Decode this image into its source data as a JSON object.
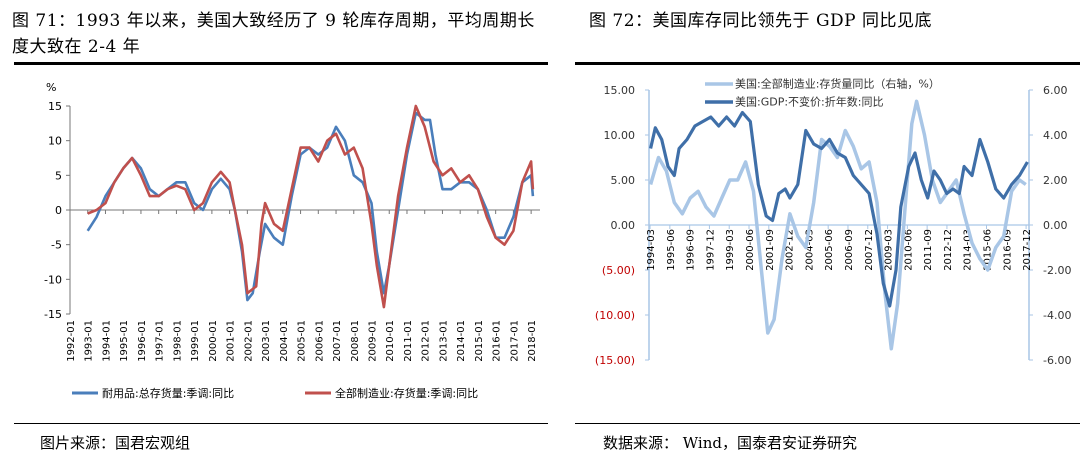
{
  "left": {
    "title": "图 71：1993 年以来，美国大致经历了 9 轮库存周期，平均周期长度大致在 2-4 年",
    "source": "图片来源：国君宏观组",
    "chart_data": {
      "type": "line",
      "ylabel": "%",
      "ylim": [
        -15,
        15
      ],
      "yticks": [
        "15",
        "10",
        "5",
        "0",
        "-5",
        "-10",
        "-15"
      ],
      "yticks_values": [
        15,
        10,
        5,
        0,
        -5,
        -10,
        -15
      ],
      "xlim": [
        1992,
        2018.5
      ],
      "x_ticks": [
        "1992-01",
        "1993-01",
        "1994-01",
        "1995-01",
        "1996-01",
        "1997-01",
        "1998-01",
        "1999-01",
        "2000-01",
        "2001-01",
        "2002-01",
        "2003-01",
        "2004-01",
        "2005-01",
        "2006-01",
        "2007-01",
        "2008-01",
        "2009-01",
        "2010-01",
        "2011-01",
        "2012-01",
        "2013-01",
        "2014-01",
        "2015-01",
        "2016-01",
        "2017-01",
        "2018-01"
      ],
      "legend_position": "bottom",
      "series": [
        {
          "name": "耐用品:总存货量:季调:同比",
          "color": "#4a7ebb",
          "points": [
            [
              1993.0,
              -3
            ],
            [
              1993.5,
              -1
            ],
            [
              1994.0,
              2
            ],
            [
              1994.5,
              4
            ],
            [
              1995.0,
              6
            ],
            [
              1995.5,
              7.5
            ],
            [
              1996.0,
              6
            ],
            [
              1996.5,
              3
            ],
            [
              1997.0,
              2
            ],
            [
              1997.5,
              3
            ],
            [
              1998.0,
              4
            ],
            [
              1998.5,
              4
            ],
            [
              1999.0,
              1
            ],
            [
              1999.5,
              0
            ],
            [
              2000.0,
              3
            ],
            [
              2000.5,
              4.5
            ],
            [
              2001.0,
              3
            ],
            [
              2001.3,
              0
            ],
            [
              2001.7,
              -6
            ],
            [
              2002.0,
              -13
            ],
            [
              2002.3,
              -12
            ],
            [
              2002.7,
              -6
            ],
            [
              2003.0,
              -2
            ],
            [
              2003.5,
              -4
            ],
            [
              2004.0,
              -5
            ],
            [
              2004.5,
              2
            ],
            [
              2005.0,
              8
            ],
            [
              2005.5,
              9
            ],
            [
              2006.0,
              8
            ],
            [
              2006.5,
              9
            ],
            [
              2007.0,
              12
            ],
            [
              2007.5,
              10
            ],
            [
              2008.0,
              5
            ],
            [
              2008.5,
              4
            ],
            [
              2009.0,
              1
            ],
            [
              2009.3,
              -6
            ],
            [
              2009.7,
              -12
            ],
            [
              2010.0,
              -8
            ],
            [
              2010.5,
              0
            ],
            [
              2011.0,
              8
            ],
            [
              2011.5,
              14
            ],
            [
              2012.0,
              13
            ],
            [
              2012.3,
              13
            ],
            [
              2012.6,
              8
            ],
            [
              2013.0,
              3
            ],
            [
              2013.5,
              3
            ],
            [
              2014.0,
              4
            ],
            [
              2014.5,
              4
            ],
            [
              2015.0,
              3
            ],
            [
              2015.5,
              0
            ],
            [
              2016.0,
              -4
            ],
            [
              2016.5,
              -4
            ],
            [
              2017.0,
              -1
            ],
            [
              2017.5,
              4
            ],
            [
              2018.0,
              5
            ],
            [
              2018.1,
              2
            ]
          ]
        },
        {
          "name": "全部制造业:存货量:季调:同比",
          "color": "#c0504d",
          "points": [
            [
              1993.0,
              -0.5
            ],
            [
              1993.5,
              0
            ],
            [
              1994.0,
              1
            ],
            [
              1994.5,
              4
            ],
            [
              1995.0,
              6
            ],
            [
              1995.5,
              7.5
            ],
            [
              1996.0,
              5
            ],
            [
              1996.5,
              2
            ],
            [
              1997.0,
              2
            ],
            [
              1997.5,
              3
            ],
            [
              1998.0,
              3.5
            ],
            [
              1998.5,
              3
            ],
            [
              1999.0,
              0
            ],
            [
              1999.5,
              1
            ],
            [
              2000.0,
              4
            ],
            [
              2000.5,
              5.5
            ],
            [
              2001.0,
              4
            ],
            [
              2001.3,
              0
            ],
            [
              2001.7,
              -5
            ],
            [
              2002.0,
              -12
            ],
            [
              2002.5,
              -11
            ],
            [
              2002.8,
              -2
            ],
            [
              2003.0,
              1
            ],
            [
              2003.5,
              -2
            ],
            [
              2004.0,
              -3
            ],
            [
              2004.5,
              3
            ],
            [
              2005.0,
              9
            ],
            [
              2005.5,
              9
            ],
            [
              2006.0,
              7
            ],
            [
              2006.5,
              10
            ],
            [
              2007.0,
              11
            ],
            [
              2007.5,
              8
            ],
            [
              2008.0,
              9
            ],
            [
              2008.5,
              6
            ],
            [
              2009.0,
              -2
            ],
            [
              2009.3,
              -8
            ],
            [
              2009.7,
              -14
            ],
            [
              2010.0,
              -8
            ],
            [
              2010.5,
              2
            ],
            [
              2011.0,
              9
            ],
            [
              2011.5,
              15
            ],
            [
              2012.0,
              12
            ],
            [
              2012.5,
              7
            ],
            [
              2013.0,
              5
            ],
            [
              2013.5,
              6
            ],
            [
              2014.0,
              4
            ],
            [
              2014.5,
              5
            ],
            [
              2015.0,
              3
            ],
            [
              2015.5,
              -1
            ],
            [
              2016.0,
              -4
            ],
            [
              2016.5,
              -5
            ],
            [
              2017.0,
              -3
            ],
            [
              2017.5,
              4
            ],
            [
              2018.0,
              7
            ],
            [
              2018.1,
              3
            ]
          ]
        }
      ]
    }
  },
  "right": {
    "title": "图 72：美国库存同比领先于 GDP 同比见底",
    "source": "数据来源：    Wind，国泰君安证券研究",
    "chart_data": {
      "type": "line",
      "ylim_left": [
        -15,
        15
      ],
      "ylim_right": [
        -6,
        6
      ],
      "yticks_left": [
        "15.00",
        "10.00",
        "5.00",
        "0.00",
        "(5.00)",
        "(10.00)",
        "(15.00)"
      ],
      "yticks_left_values": [
        15,
        10,
        5,
        0,
        -5,
        -10,
        -15
      ],
      "yticks_right": [
        "6.00",
        "4.00",
        "2.00",
        "0.00",
        "-2.00",
        "-4.00",
        "-6.00"
      ],
      "yticks_right_values": [
        6,
        4,
        2,
        0,
        -2,
        -4,
        -6
      ],
      "negative_tick_color": "#c00000",
      "xlim": [
        1994.1,
        2018.1
      ],
      "x_ticks": [
        "1994-03",
        "1995-06",
        "1996-09",
        "1997-12",
        "1999-03",
        "2000-06",
        "2001-09",
        "2002-12",
        "2004-03",
        "2005-06",
        "2006-09",
        "2007-12",
        "2009-03",
        "2010-06",
        "2011-09",
        "2012-12",
        "2014-03",
        "2015-06",
        "2016-09",
        "2017-12"
      ],
      "legend_position": "top",
      "series": [
        {
          "name": "美国:全部制造业:存货量同比（右轴，%）",
          "axis": "right",
          "color": "#a9c6e6",
          "points": [
            [
              1994.2,
              1.8
            ],
            [
              1994.7,
              3.0
            ],
            [
              1995.2,
              2.4
            ],
            [
              1995.7,
              1.0
            ],
            [
              1996.2,
              0.5
            ],
            [
              1996.7,
              1.2
            ],
            [
              1997.2,
              1.5
            ],
            [
              1997.7,
              0.8
            ],
            [
              1998.2,
              0.4
            ],
            [
              1998.7,
              1.2
            ],
            [
              1999.2,
              2.0
            ],
            [
              1999.7,
              2.0
            ],
            [
              2000.2,
              2.8
            ],
            [
              2000.7,
              1.5
            ],
            [
              2001.2,
              -2.0
            ],
            [
              2001.6,
              -4.8
            ],
            [
              2002.0,
              -4.2
            ],
            [
              2002.5,
              -1.5
            ],
            [
              2003.0,
              0.5
            ],
            [
              2003.5,
              -0.5
            ],
            [
              2004.0,
              -1.0
            ],
            [
              2004.5,
              1.0
            ],
            [
              2005.0,
              3.8
            ],
            [
              2005.5,
              3.5
            ],
            [
              2006.0,
              3.0
            ],
            [
              2006.5,
              4.2
            ],
            [
              2007.0,
              3.5
            ],
            [
              2007.5,
              2.5
            ],
            [
              2008.0,
              2.8
            ],
            [
              2008.5,
              1.0
            ],
            [
              2009.0,
              -3.0
            ],
            [
              2009.4,
              -5.5
            ],
            [
              2009.8,
              -3.5
            ],
            [
              2010.3,
              1.0
            ],
            [
              2010.7,
              4.5
            ],
            [
              2011.0,
              5.5
            ],
            [
              2011.5,
              4.0
            ],
            [
              2012.0,
              2.0
            ],
            [
              2012.5,
              1.0
            ],
            [
              2013.0,
              1.5
            ],
            [
              2013.5,
              2.0
            ],
            [
              2014.0,
              0.5
            ],
            [
              2014.5,
              -0.8
            ],
            [
              2015.0,
              -1.5
            ],
            [
              2015.5,
              -2.0
            ],
            [
              2016.0,
              -1.0
            ],
            [
              2016.5,
              -0.5
            ],
            [
              2017.0,
              1.5
            ],
            [
              2017.5,
              2.0
            ],
            [
              2017.9,
              1.8
            ]
          ]
        },
        {
          "name": "美国:GDP:不变价:折年数:同比",
          "axis": "left",
          "color": "#3f6fa8",
          "points": [
            [
              1994.2,
              8.5
            ],
            [
              1994.5,
              10.8
            ],
            [
              1994.9,
              9.5
            ],
            [
              1995.3,
              6.5
            ],
            [
              1995.7,
              5.5
            ],
            [
              1996.0,
              8.5
            ],
            [
              1996.5,
              9.5
            ],
            [
              1997.0,
              11.0
            ],
            [
              1997.5,
              11.5
            ],
            [
              1998.0,
              12.0
            ],
            [
              1998.5,
              11.0
            ],
            [
              1999.0,
              12.0
            ],
            [
              1999.5,
              11.0
            ],
            [
              2000.0,
              12.5
            ],
            [
              2000.5,
              11.5
            ],
            [
              2001.0,
              4.5
            ],
            [
              2001.5,
              1.0
            ],
            [
              2001.9,
              0.5
            ],
            [
              2002.3,
              3.5
            ],
            [
              2002.7,
              4.0
            ],
            [
              2003.0,
              3.0
            ],
            [
              2003.5,
              4.5
            ],
            [
              2004.0,
              10.5
            ],
            [
              2004.5,
              9.0
            ],
            [
              2005.0,
              8.5
            ],
            [
              2005.5,
              9.5
            ],
            [
              2006.0,
              8.0
            ],
            [
              2006.5,
              7.5
            ],
            [
              2007.0,
              5.5
            ],
            [
              2007.5,
              4.5
            ],
            [
              2008.0,
              3.5
            ],
            [
              2008.5,
              -1.0
            ],
            [
              2008.9,
              -6.5
            ],
            [
              2009.3,
              -9.0
            ],
            [
              2009.7,
              -5.0
            ],
            [
              2010.0,
              2.0
            ],
            [
              2010.5,
              6.5
            ],
            [
              2010.9,
              8.0
            ],
            [
              2011.3,
              5.0
            ],
            [
              2011.7,
              3.0
            ],
            [
              2012.1,
              6.0
            ],
            [
              2012.5,
              5.0
            ],
            [
              2012.9,
              3.5
            ],
            [
              2013.3,
              4.0
            ],
            [
              2013.7,
              3.5
            ],
            [
              2014.0,
              6.5
            ],
            [
              2014.5,
              5.5
            ],
            [
              2015.0,
              9.5
            ],
            [
              2015.5,
              7.0
            ],
            [
              2016.0,
              4.0
            ],
            [
              2016.5,
              3.0
            ],
            [
              2017.0,
              4.5
            ],
            [
              2017.5,
              5.5
            ],
            [
              2018.0,
              7.0
            ]
          ]
        }
      ]
    }
  }
}
